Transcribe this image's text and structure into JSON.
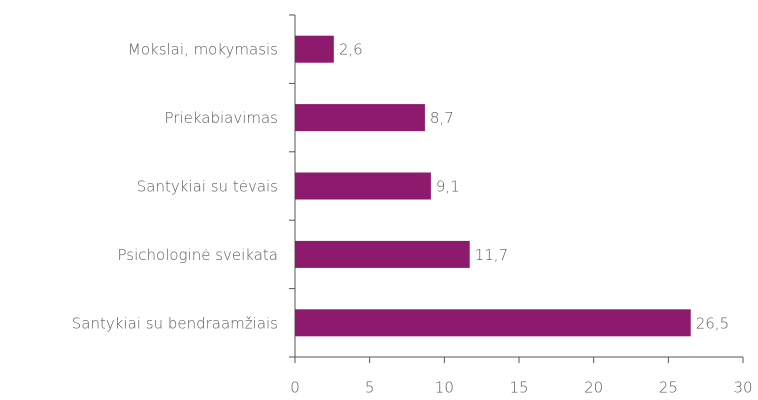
{
  "chart_data": {
    "type": "barh",
    "categories": [
      "Mokslai, mokymasis",
      "Priekabiavimas",
      "Santykiai su tėvais",
      "Psichologinė sveikata",
      "Santykiai su bendraamžiais"
    ],
    "values": [
      2.6,
      8.7,
      9.1,
      11.7,
      26.5
    ],
    "value_labels": [
      "2,6",
      "8,7",
      "9,1",
      "11,7",
      "26,5"
    ],
    "color": "#8e1a6e",
    "xlim": [
      0,
      30
    ],
    "xticks": [
      0,
      5,
      10,
      15,
      20,
      25,
      30
    ]
  }
}
